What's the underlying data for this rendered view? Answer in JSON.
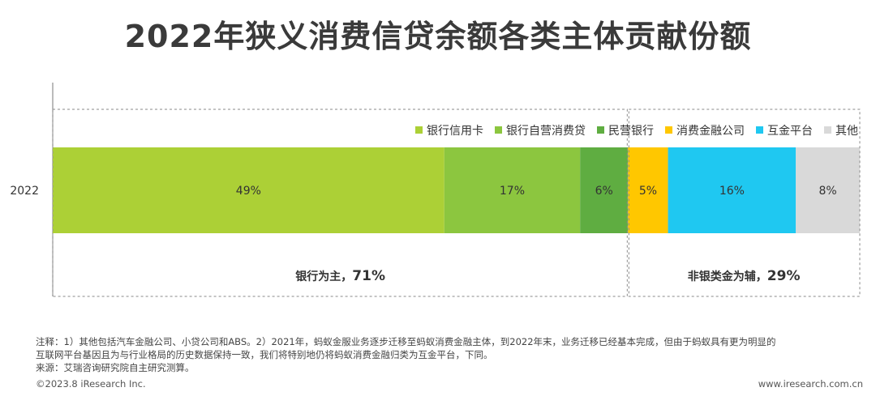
{
  "title": "2022年狭义消费信贷余额各类主体贡献份额",
  "chart_data": {
    "type": "bar",
    "orientation": "horizontal",
    "stacked": "percent",
    "categories": [
      "2022"
    ],
    "series": [
      {
        "name": "银行信用卡",
        "values": [
          49
        ],
        "label": "49%",
        "color": "#acd036"
      },
      {
        "name": "银行自营消费贷",
        "values": [
          17
        ],
        "label": "17%",
        "color": "#8cc63f"
      },
      {
        "name": "民营银行",
        "values": [
          6
        ],
        "label": "6%",
        "color": "#5fad41"
      },
      {
        "name": "消费金融公司",
        "values": [
          5
        ],
        "label": "5%",
        "color": "#ffc700"
      },
      {
        "name": "互金平台",
        "values": [
          16
        ],
        "label": "16%",
        "color": "#1fc8f1"
      },
      {
        "name": "其他",
        "values": [
          8
        ],
        "label": "8%",
        "color": "#d9d9d9"
      }
    ],
    "groups": [
      {
        "label": "银行为主，",
        "value": "71%",
        "series_count": 3
      },
      {
        "label": "非银类金为辅，",
        "value": "29%",
        "series_count": 3
      }
    ],
    "legend_position": "top-right",
    "grid": false
  },
  "notes": [
    "注释：1）其他包括汽车金融公司、小贷公司和ABS。2）2021年，蚂蚁金服业务逐步迁移至蚂蚁消费金融主体，到2022年末，业务迁移已经基本完成，但由于蚂蚁具有更为明显的",
    "互联网平台基因且为与行业格局的历史数据保持一致，我们将特别地仍将蚂蚁消费金融归类为互金平台，下同。",
    "来源：艾瑞咨询研究院自主研究测算。"
  ],
  "footer": {
    "copyright": "©2023.8 iResearch Inc.",
    "website": "www.iresearch.com.cn"
  }
}
